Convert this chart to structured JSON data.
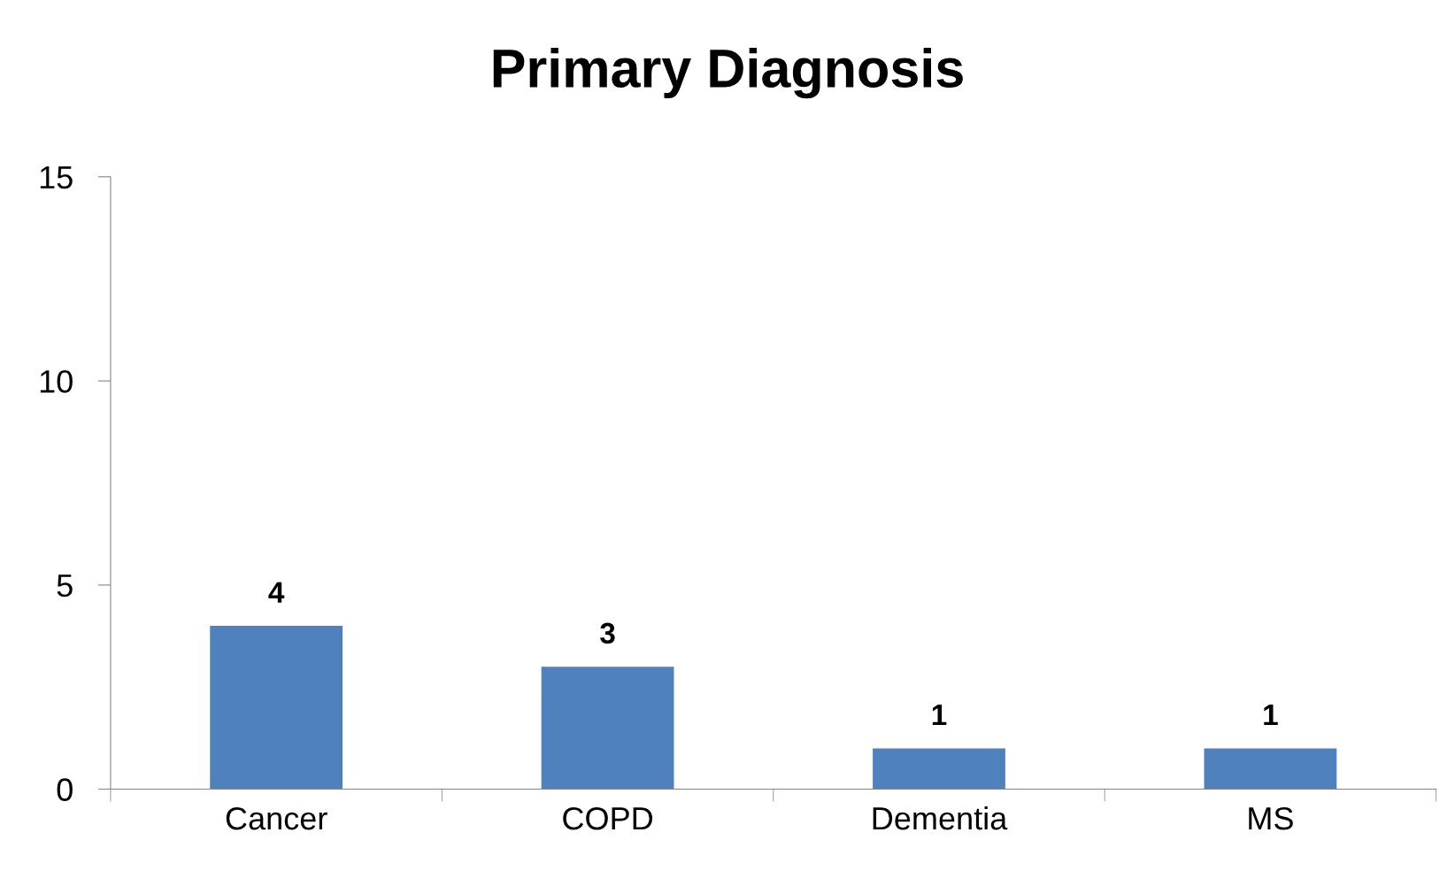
{
  "chart_data": {
    "type": "bar",
    "title": "Primary Diagnosis",
    "categories": [
      "Cancer",
      "COPD",
      "Dementia",
      "MS"
    ],
    "values": [
      4,
      3,
      1,
      1
    ],
    "color": "#4f81bd",
    "ylim": [
      0,
      15
    ],
    "yticks": [
      0,
      5,
      10,
      15
    ],
    "grid": false,
    "data_labels": true
  }
}
